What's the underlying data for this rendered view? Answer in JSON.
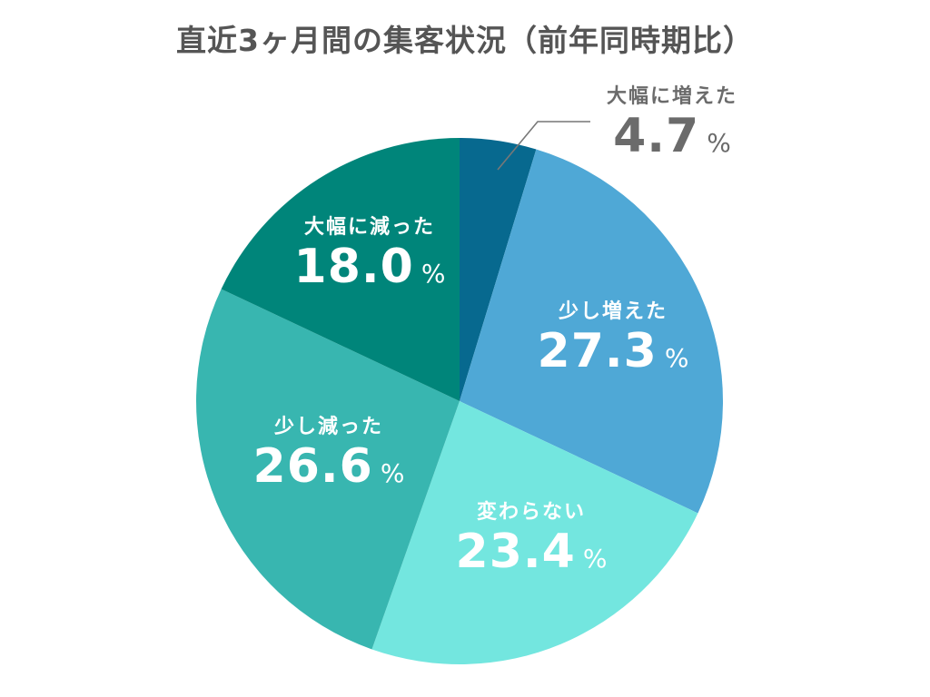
{
  "chart_data": {
    "type": "pie",
    "title": "直近3ヶ月間の集客状況（前年同時期比）",
    "unit": "%",
    "start_angle": "12 o'clock",
    "direction": "clockwise",
    "categories": [
      "大幅に増えた",
      "少し増えた",
      "変わらない",
      "少し減った",
      "大幅に減った"
    ],
    "values": [
      4.7,
      27.3,
      23.4,
      26.6,
      18.0
    ],
    "colors": [
      "#07698f",
      "#4fa8d6",
      "#73e6df",
      "#38b6b0",
      "#00857a"
    ],
    "legend": "none (labels on slices)",
    "leader_line": {
      "category": "大幅に増えた",
      "color": "#777777"
    }
  },
  "labels": [
    {
      "category": "大幅に増えた",
      "value": "4.7",
      "unit": "%"
    },
    {
      "category": "少し増えた",
      "value": "27.3",
      "unit": "%"
    },
    {
      "category": "変わらない",
      "value": "23.4",
      "unit": "%"
    },
    {
      "category": "少し減った",
      "value": "26.6",
      "unit": "%"
    },
    {
      "category": "大幅に減った",
      "value": "18.0",
      "unit": "%"
    }
  ]
}
